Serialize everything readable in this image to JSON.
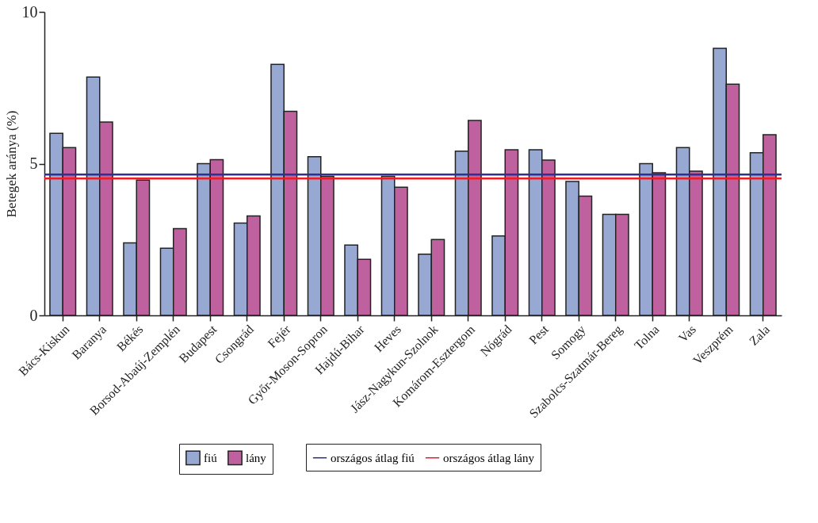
{
  "chart_data": {
    "type": "bar",
    "ylabel": "Betegek aránya (%)",
    "categories": [
      "Bács-Kiskun",
      "Baranya",
      "Békés",
      "Borsod-Abaúj-Zemplén",
      "Budapest",
      "Csongrád",
      "Fejér",
      "Győr-Moson-Sopron",
      "Hajdú-Bihar",
      "Heves",
      "Jász-Nagykun-Szolnok",
      "Komárom-Esztergom",
      "Nógrád",
      "Pest",
      "Somogy",
      "Szabolcs-Szatmár-Bereg",
      "Tolna",
      "Vas",
      "Veszprém",
      "Zala"
    ],
    "series": [
      {
        "name": "fiú",
        "color": "#97a8d2",
        "values": [
          6.0,
          7.85,
          2.39,
          2.21,
          5.0,
          3.04,
          8.27,
          5.23,
          2.32,
          4.58,
          2.02,
          5.41,
          2.62,
          5.46,
          4.41,
          3.33,
          5.0,
          5.53,
          8.8,
          5.36
        ]
      },
      {
        "name": "lány",
        "color": "#c0619f",
        "values": [
          5.53,
          6.37,
          4.46,
          2.86,
          5.13,
          3.28,
          6.72,
          4.58,
          1.85,
          4.22,
          2.5,
          6.42,
          5.46,
          5.12,
          3.93,
          3.33,
          4.7,
          4.75,
          7.62,
          5.95
        ]
      }
    ],
    "ref_lines": [
      {
        "axis": "y",
        "value": 4.64,
        "label": "országos átlag fiú",
        "color": "#2e3192"
      },
      {
        "axis": "y",
        "value": 4.51,
        "label": "országos átlag lány",
        "color": "#ed1c24"
      }
    ],
    "ylim": [
      0,
      10
    ],
    "yticks": [
      0,
      5,
      10
    ],
    "grid": false,
    "legend": "bottom"
  }
}
